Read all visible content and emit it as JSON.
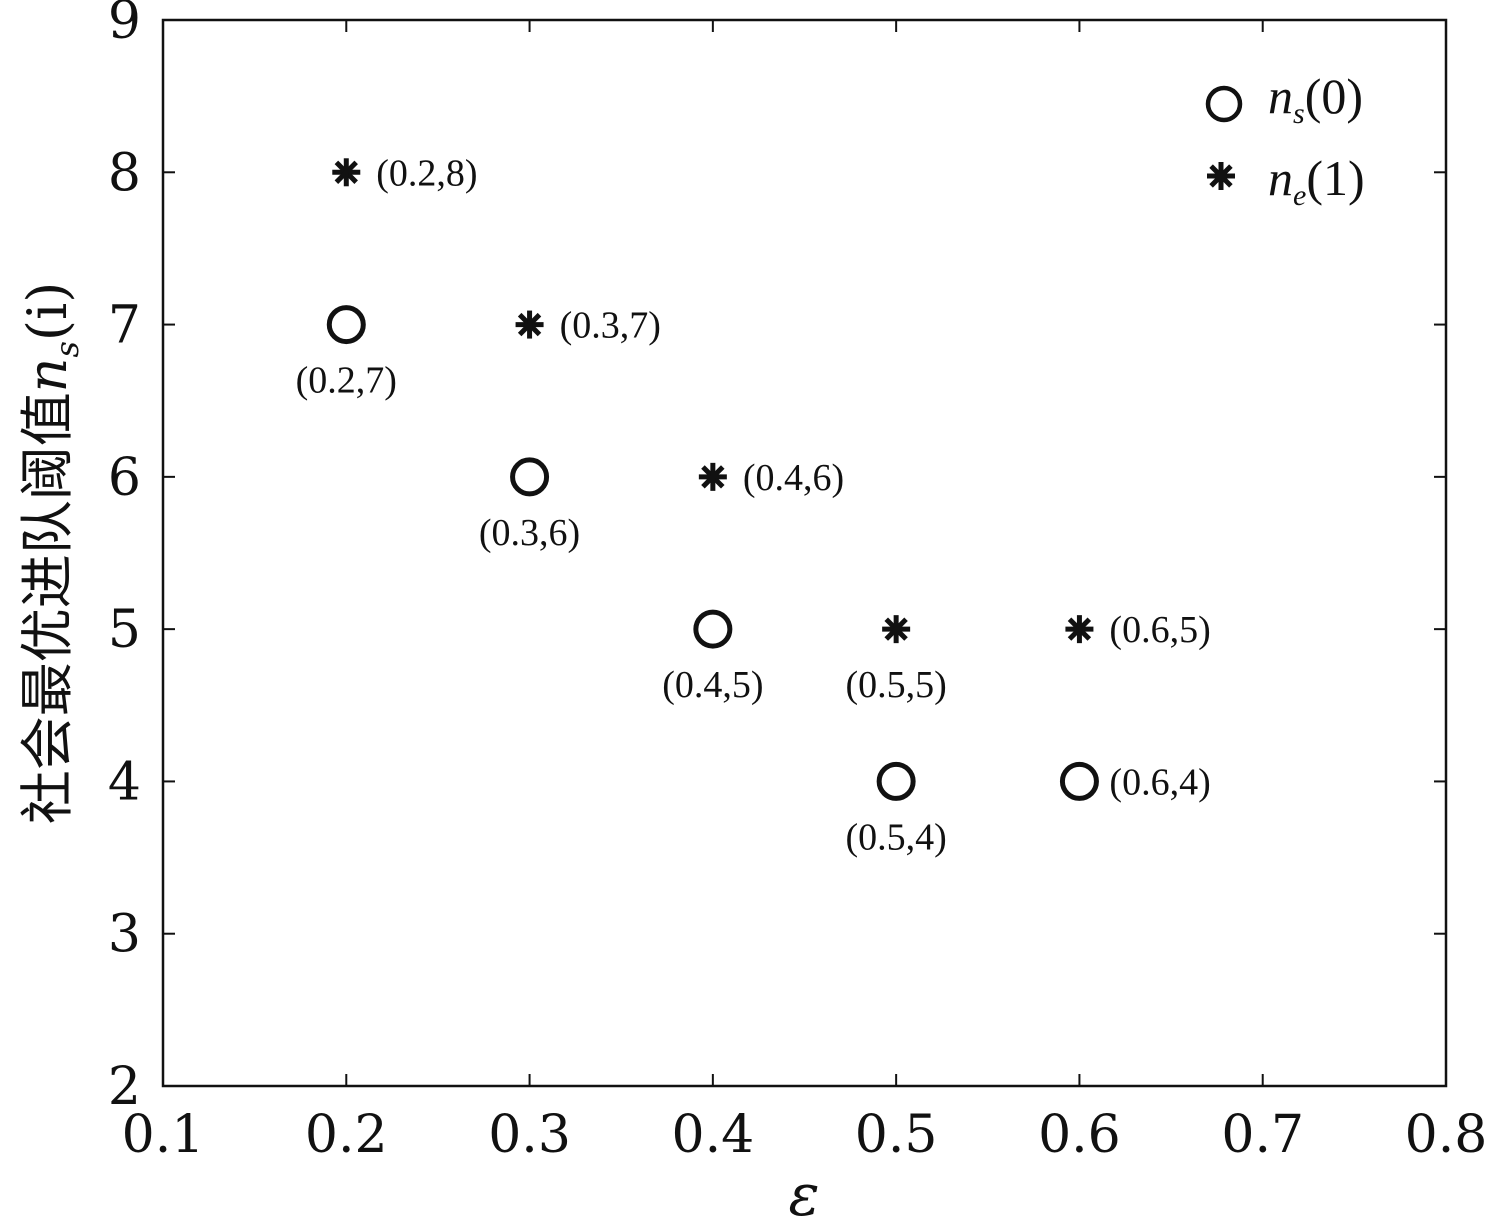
{
  "chart_data": {
    "type": "scatter",
    "xlabel": "ε",
    "ylabel": "社会最优进队阈值n_s(i)",
    "ylabel_main": "社会最优进队阈值",
    "ylabel_var": "n",
    "ylabel_sub": "s",
    "ylabel_arg": "(i)",
    "xlim": [
      0.1,
      0.8
    ],
    "ylim": [
      2,
      9
    ],
    "x_ticks": [
      "0.1",
      "0.2",
      "0.3",
      "0.4",
      "0.5",
      "0.6",
      "0.7",
      "0.8"
    ],
    "y_ticks": [
      "2",
      "3",
      "4",
      "5",
      "6",
      "7",
      "8",
      "9"
    ],
    "grid": false,
    "legend_position": "top-right",
    "series": [
      {
        "name": "n_s(0)",
        "legend_main": "n",
        "legend_sub": "s",
        "legend_arg": "(0)",
        "marker": "circle",
        "points": [
          {
            "x": 0.2,
            "y": 7,
            "label": "(0.2,7)",
            "label_pos": "below"
          },
          {
            "x": 0.3,
            "y": 6,
            "label": "(0.3,6)",
            "label_pos": "below"
          },
          {
            "x": 0.4,
            "y": 5,
            "label": "(0.4,5)",
            "label_pos": "below"
          },
          {
            "x": 0.5,
            "y": 4,
            "label": "(0.5,4)",
            "label_pos": "below"
          },
          {
            "x": 0.6,
            "y": 4,
            "label": "(0.6,4)",
            "label_pos": "right"
          }
        ]
      },
      {
        "name": "n_e(1)",
        "legend_main": "n",
        "legend_sub": "e",
        "legend_arg": "(1)",
        "marker": "asterisk",
        "points": [
          {
            "x": 0.2,
            "y": 8,
            "label": "(0.2,8)",
            "label_pos": "right"
          },
          {
            "x": 0.3,
            "y": 7,
            "label": "(0.3,7)",
            "label_pos": "right"
          },
          {
            "x": 0.4,
            "y": 6,
            "label": "(0.4,6)",
            "label_pos": "right"
          },
          {
            "x": 0.5,
            "y": 5,
            "label": "(0.5,5)",
            "label_pos": "below"
          },
          {
            "x": 0.6,
            "y": 5,
            "label": "(0.6,5)",
            "label_pos": "right"
          }
        ]
      }
    ]
  }
}
